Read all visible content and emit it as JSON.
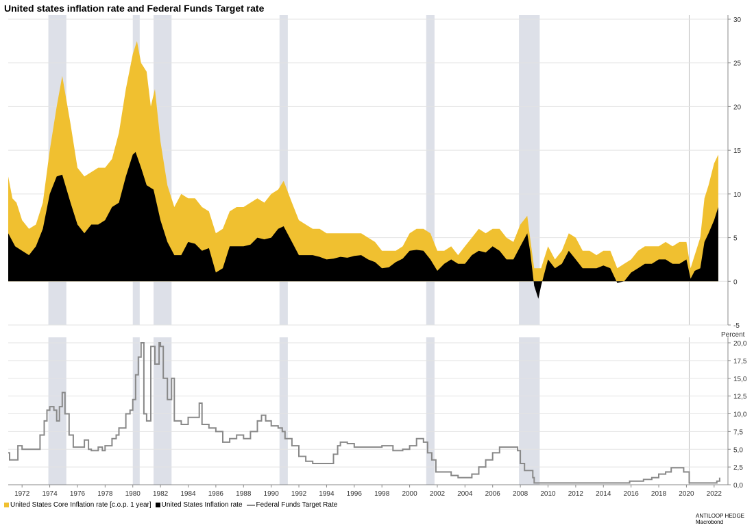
{
  "title": "United states inflation rate and Federal Funds Target rate",
  "legend": {
    "core": "United States Core Inflation rate [c.o.p. 1 year]",
    "headline": "United States Inflation rate",
    "fed": "Federal Funds Target Rate"
  },
  "source": {
    "line1": "ANTILOOP HEDGE",
    "line2": "Macrobond"
  },
  "colors": {
    "core": "#f0c030",
    "headline": "#000000",
    "fed": "#888888",
    "recession": "#dde0e8"
  },
  "chart_data": [
    {
      "type": "area",
      "x_unit": "year",
      "xlim": [
        1971.0,
        2023.0
      ],
      "ylim": [
        -5,
        30
      ],
      "grid": true,
      "y_ticks": [
        "-5",
        "0",
        "5",
        "10",
        "15",
        "20",
        "25",
        "30"
      ],
      "recessions": [
        [
          1973.9,
          1975.2
        ],
        [
          1980.0,
          1980.5
        ],
        [
          1981.5,
          1982.8
        ],
        [
          1990.6,
          1991.2
        ],
        [
          2001.2,
          2001.8
        ],
        [
          2007.9,
          2009.4
        ]
      ],
      "marker_line_x": 2020.2,
      "series": [
        {
          "name": "United States Core Inflation rate [c.o.p. 1 year]",
          "note": "stacked on top of headline inflation",
          "x": [
            1971.0,
            1971.3,
            1971.6,
            1972.0,
            1972.5,
            1973.0,
            1973.5,
            1974.0,
            1974.5,
            1974.9,
            1975.5,
            1976.0,
            1976.5,
            1977.0,
            1977.5,
            1978.0,
            1978.5,
            1979.0,
            1979.5,
            1980.0,
            1980.3,
            1980.6,
            1981.0,
            1981.3,
            1981.6,
            1982.0,
            1982.5,
            1983.0,
            1983.5,
            1984.0,
            1984.5,
            1985.0,
            1985.5,
            1986.0,
            1986.5,
            1987.0,
            1987.5,
            1988.0,
            1988.5,
            1989.0,
            1989.5,
            1990.0,
            1990.5,
            1990.9,
            1991.5,
            1992.0,
            1992.5,
            1993.0,
            1993.5,
            1994.0,
            1994.5,
            1995.0,
            1995.5,
            1996.0,
            1996.5,
            1997.0,
            1997.5,
            1998.0,
            1998.5,
            1999.0,
            1999.5,
            2000.0,
            2000.5,
            2001.0,
            2001.5,
            2002.0,
            2002.5,
            2003.0,
            2003.5,
            2004.0,
            2004.5,
            2005.0,
            2005.5,
            2006.0,
            2006.5,
            2007.0,
            2007.5,
            2008.0,
            2008.5,
            2008.7,
            2009.0,
            2009.5,
            2010.0,
            2010.5,
            2011.0,
            2011.5,
            2012.0,
            2012.5,
            2013.0,
            2013.5,
            2014.0,
            2014.5,
            2015.0,
            2015.5,
            2016.0,
            2016.5,
            2017.0,
            2017.5,
            2018.0,
            2018.5,
            2019.0,
            2019.5,
            2020.0,
            2020.3,
            2020.6,
            2021.0,
            2021.3,
            2021.6,
            2022.0,
            2022.3
          ],
          "values": [
            12.0,
            9.5,
            9.0,
            7.0,
            6.0,
            6.5,
            9.0,
            15.0,
            20.0,
            23.5,
            18.0,
            13.0,
            12.0,
            12.5,
            13.0,
            13.0,
            14.0,
            17.0,
            22.0,
            26.0,
            27.5,
            25.0,
            24.0,
            20.0,
            22.0,
            16.0,
            11.0,
            8.5,
            10.0,
            9.5,
            9.5,
            8.5,
            8.0,
            5.5,
            6.0,
            8.0,
            8.5,
            8.5,
            9.0,
            9.5,
            9.0,
            10.0,
            10.5,
            11.5,
            9.0,
            7.0,
            6.5,
            6.0,
            6.0,
            5.5,
            5.5,
            5.5,
            5.5,
            5.5,
            5.5,
            5.0,
            4.5,
            3.5,
            3.5,
            3.5,
            4.0,
            5.5,
            6.0,
            6.0,
            5.5,
            3.5,
            3.5,
            4.0,
            3.0,
            4.0,
            5.0,
            6.0,
            5.5,
            6.0,
            6.0,
            5.0,
            4.5,
            6.5,
            7.5,
            5.0,
            1.5,
            1.5,
            4.0,
            2.5,
            3.5,
            5.5,
            5.0,
            3.5,
            3.5,
            3.0,
            3.5,
            3.5,
            1.5,
            2.0,
            2.5,
            3.5,
            4.0,
            4.0,
            4.0,
            4.5,
            4.0,
            4.5,
            4.5,
            1.5,
            3.0,
            5.0,
            9.5,
            11.0,
            13.5,
            14.5
          ]
        },
        {
          "name": "United States Inflation rate",
          "x": [
            1971.0,
            1971.5,
            1972.0,
            1972.5,
            1973.0,
            1973.5,
            1974.0,
            1974.5,
            1974.9,
            1975.5,
            1976.0,
            1976.5,
            1977.0,
            1977.5,
            1978.0,
            1978.5,
            1979.0,
            1979.5,
            1980.0,
            1980.2,
            1980.6,
            1981.0,
            1981.5,
            1982.0,
            1982.5,
            1983.0,
            1983.5,
            1984.0,
            1984.5,
            1985.0,
            1985.5,
            1986.0,
            1986.5,
            1987.0,
            1987.5,
            1988.0,
            1988.5,
            1989.0,
            1989.5,
            1990.0,
            1990.5,
            1990.9,
            1991.5,
            1992.0,
            1992.5,
            1993.0,
            1993.5,
            1994.0,
            1994.5,
            1995.0,
            1995.5,
            1996.0,
            1996.5,
            1997.0,
            1997.5,
            1998.0,
            1998.5,
            1999.0,
            1999.5,
            2000.0,
            2000.5,
            2001.0,
            2001.5,
            2002.0,
            2002.5,
            2003.0,
            2003.5,
            2004.0,
            2004.5,
            2005.0,
            2005.5,
            2006.0,
            2006.5,
            2007.0,
            2007.5,
            2008.0,
            2008.5,
            2008.7,
            2009.0,
            2009.3,
            2009.5,
            2010.0,
            2010.5,
            2011.0,
            2011.5,
            2012.0,
            2012.5,
            2013.0,
            2013.5,
            2014.0,
            2014.5,
            2015.0,
            2015.5,
            2016.0,
            2016.5,
            2017.0,
            2017.5,
            2018.0,
            2018.5,
            2019.0,
            2019.5,
            2020.0,
            2020.3,
            2020.6,
            2021.0,
            2021.3,
            2021.6,
            2022.0,
            2022.3
          ],
          "values": [
            5.5,
            4.0,
            3.5,
            3.0,
            4.0,
            6.0,
            10.0,
            12.0,
            12.2,
            9.0,
            6.5,
            5.5,
            6.5,
            6.5,
            7.0,
            8.5,
            9.0,
            12.0,
            14.5,
            14.8,
            13.0,
            11.0,
            10.5,
            7.0,
            4.5,
            3.0,
            3.0,
            4.5,
            4.3,
            3.5,
            3.8,
            1.0,
            1.5,
            4.0,
            4.0,
            4.0,
            4.2,
            5.0,
            4.8,
            5.0,
            6.0,
            6.3,
            4.5,
            3.0,
            3.0,
            3.0,
            2.8,
            2.5,
            2.6,
            2.8,
            2.7,
            2.9,
            3.0,
            2.5,
            2.2,
            1.5,
            1.6,
            2.2,
            2.6,
            3.5,
            3.6,
            3.5,
            2.5,
            1.2,
            2.0,
            2.5,
            2.0,
            2.0,
            3.0,
            3.5,
            3.3,
            4.0,
            3.5,
            2.5,
            2.5,
            4.0,
            5.5,
            3.5,
            -0.5,
            -2.0,
            -0.5,
            2.5,
            1.5,
            2.0,
            3.5,
            2.5,
            1.5,
            1.5,
            1.5,
            1.8,
            1.5,
            -0.2,
            0.0,
            1.0,
            1.5,
            2.0,
            2.0,
            2.5,
            2.5,
            2.0,
            2.0,
            2.5,
            0.3,
            1.2,
            1.5,
            4.5,
            5.5,
            7.0,
            8.5
          ]
        }
      ]
    },
    {
      "type": "line",
      "x_unit": "year",
      "xlim": [
        1971.0,
        2023.0
      ],
      "ylim": [
        0,
        20
      ],
      "grid": true,
      "y_unit_label": "Percent",
      "y_ticks": [
        "0,0",
        "2,5",
        "5,0",
        "7,5",
        "10,0",
        "12,5",
        "15,0",
        "17,5",
        "20,0"
      ],
      "x_ticks": [
        "1972",
        "1974",
        "1976",
        "1978",
        "1980",
        "1982",
        "1984",
        "1986",
        "1988",
        "1990",
        "1992",
        "1994",
        "1996",
        "1998",
        "2000",
        "2002",
        "2004",
        "2006",
        "2008",
        "2010",
        "2012",
        "2014",
        "2016",
        "2018",
        "2020",
        "2022"
      ],
      "recessions": [
        [
          1973.9,
          1975.2
        ],
        [
          1980.0,
          1980.5
        ],
        [
          1981.5,
          1982.8
        ],
        [
          1990.6,
          1991.2
        ],
        [
          2001.2,
          2001.8
        ],
        [
          2007.9,
          2009.4
        ]
      ],
      "marker_line_x": 2020.2,
      "series": [
        {
          "name": "Federal Funds Target Rate",
          "x": [
            1971.0,
            1971.1,
            1971.5,
            1971.7,
            1972.0,
            1972.5,
            1973.0,
            1973.3,
            1973.6,
            1973.8,
            1974.0,
            1974.3,
            1974.5,
            1974.7,
            1974.9,
            1975.1,
            1975.4,
            1975.7,
            1976.0,
            1976.5,
            1976.8,
            1977.0,
            1977.5,
            1977.8,
            1978.0,
            1978.5,
            1978.8,
            1979.0,
            1979.5,
            1979.8,
            1980.0,
            1980.2,
            1980.4,
            1980.6,
            1980.8,
            1981.0,
            1981.3,
            1981.6,
            1981.9,
            1982.0,
            1982.2,
            1982.5,
            1982.8,
            1983.0,
            1983.5,
            1984.0,
            1984.5,
            1984.8,
            1985.0,
            1985.5,
            1986.0,
            1986.5,
            1987.0,
            1987.5,
            1988.0,
            1988.5,
            1989.0,
            1989.3,
            1989.6,
            1990.0,
            1990.5,
            1990.8,
            1991.0,
            1991.5,
            1992.0,
            1992.5,
            1993.0,
            1993.5,
            1994.0,
            1994.5,
            1994.8,
            1995.0,
            1995.5,
            1996.0,
            1997.0,
            1998.0,
            1998.8,
            1999.5,
            2000.0,
            2000.5,
            2001.0,
            2001.3,
            2001.6,
            2001.9,
            2002.5,
            2003.0,
            2003.5,
            2004.0,
            2004.5,
            2005.0,
            2005.5,
            2006.0,
            2006.5,
            2007.0,
            2007.5,
            2007.8,
            2008.0,
            2008.3,
            2008.6,
            2008.9,
            2009.0,
            2010.0,
            2012.0,
            2014.0,
            2015.9,
            2016.9,
            2017.5,
            2018.0,
            2018.5,
            2018.9,
            2019.5,
            2019.8,
            2020.2,
            2021.0,
            2022.0,
            2022.2,
            2022.4
          ],
          "values": [
            4.5,
            3.5,
            3.5,
            5.5,
            5.0,
            5.0,
            5.0,
            7.0,
            9.0,
            10.5,
            11.0,
            10.5,
            9.0,
            11.0,
            13.0,
            10.0,
            7.0,
            5.3,
            5.3,
            6.3,
            5.0,
            4.8,
            5.3,
            4.8,
            5.5,
            6.5,
            7.0,
            8.0,
            10.0,
            10.5,
            12.0,
            15.5,
            18.0,
            20.0,
            10.0,
            9.0,
            19.5,
            17.0,
            20.0,
            19.5,
            15.0,
            12.0,
            15.0,
            9.0,
            8.5,
            9.5,
            9.5,
            11.5,
            8.5,
            8.0,
            7.5,
            6.0,
            6.5,
            7.0,
            6.5,
            7.5,
            9.0,
            9.8,
            9.0,
            8.3,
            8.0,
            7.5,
            6.5,
            5.5,
            4.0,
            3.3,
            3.0,
            3.0,
            3.0,
            4.3,
            5.5,
            6.0,
            5.8,
            5.3,
            5.3,
            5.5,
            4.8,
            5.0,
            5.5,
            6.5,
            6.0,
            4.5,
            3.5,
            1.8,
            1.8,
            1.3,
            1.0,
            1.0,
            1.5,
            2.5,
            3.5,
            4.5,
            5.3,
            5.3,
            5.3,
            4.8,
            3.0,
            2.0,
            2.0,
            1.0,
            0.25,
            0.25,
            0.25,
            0.25,
            0.5,
            0.75,
            1.0,
            1.5,
            1.8,
            2.4,
            2.4,
            1.8,
            0.25,
            0.25,
            0.25,
            0.5,
            1.0
          ]
        }
      ]
    }
  ]
}
